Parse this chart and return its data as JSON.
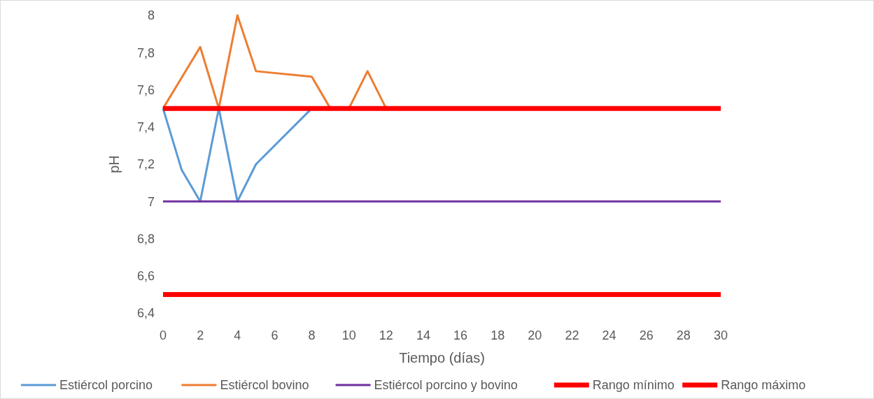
{
  "chart_data": {
    "type": "line",
    "xlabel": "Tiempo (días)",
    "ylabel": "pH",
    "xlim": [
      0,
      30
    ],
    "xticks": [
      0,
      2,
      4,
      6,
      8,
      10,
      12,
      14,
      16,
      18,
      20,
      22,
      24,
      26,
      28,
      30
    ],
    "ylim": [
      6.4,
      8
    ],
    "yticks": [
      {
        "value": 6.4,
        "label": "6,4"
      },
      {
        "value": 6.6,
        "label": "6,6"
      },
      {
        "value": 6.8,
        "label": "6,8"
      },
      {
        "value": 7,
        "label": "7"
      },
      {
        "value": 7.2,
        "label": "7,2"
      },
      {
        "value": 7.4,
        "label": "7,4"
      },
      {
        "value": 7.6,
        "label": "7,6"
      },
      {
        "value": 7.8,
        "label": "7,8"
      },
      {
        "value": 8,
        "label": "8"
      }
    ],
    "grid": false,
    "legend": "bottom",
    "marker": "none",
    "line_style": "solid",
    "series": [
      {
        "name": "Estiércol porcino",
        "color": "#5b9bd5",
        "x": [
          0,
          1,
          2,
          3,
          4,
          5,
          8
        ],
        "values": [
          7.5,
          7.17,
          7.0,
          7.5,
          7.0,
          7.2,
          7.5
        ]
      },
      {
        "name": "Estiércol bovino",
        "color": "#ed7d31",
        "x": [
          0,
          2,
          3,
          4,
          5,
          8,
          9,
          10,
          11,
          12
        ],
        "values": [
          7.5,
          7.83,
          7.5,
          8.0,
          7.7,
          7.67,
          7.5,
          7.5,
          7.7,
          7.5
        ]
      },
      {
        "name": "Estiércol porcino y bovino",
        "color": "#7030a0",
        "x": [
          0,
          30
        ],
        "values": [
          7,
          7
        ]
      },
      {
        "name": "Rango mínimo",
        "color": "#ff0000",
        "x": [
          0,
          30
        ],
        "values": [
          6.5,
          6.5
        ]
      },
      {
        "name": "Rango máximo",
        "color": "#ff0000",
        "x": [
          0,
          30
        ],
        "values": [
          7.5,
          7.5
        ]
      }
    ]
  }
}
